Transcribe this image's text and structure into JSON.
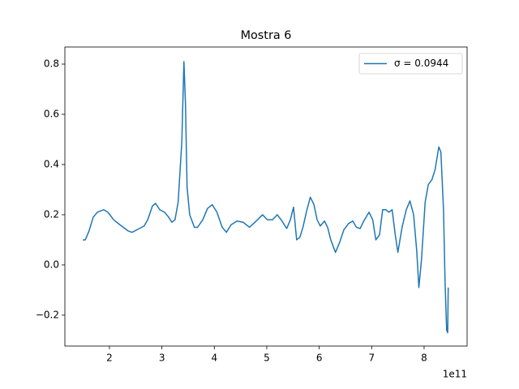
{
  "chart_data": {
    "type": "line",
    "title": "Mostra 6",
    "x_offset_label": "1e11",
    "x": [
      1.49,
      1.54,
      1.61,
      1.69,
      1.77,
      1.89,
      1.97,
      2.08,
      2.2,
      2.36,
      2.43,
      2.57,
      2.66,
      2.73,
      2.82,
      2.88,
      2.96,
      3.05,
      3.13,
      3.19,
      3.25,
      3.31,
      3.38,
      3.42,
      3.45,
      3.48,
      3.53,
      3.62,
      3.68,
      3.78,
      3.87,
      3.96,
      4.05,
      4.15,
      4.23,
      4.32,
      4.43,
      4.55,
      4.67,
      4.8,
      4.92,
      5.01,
      5.11,
      5.2,
      5.29,
      5.38,
      5.45,
      5.51,
      5.57,
      5.63,
      5.69,
      5.76,
      5.83,
      5.9,
      5.96,
      6.02,
      6.1,
      6.16,
      6.22,
      6.31,
      6.39,
      6.47,
      6.56,
      6.64,
      6.71,
      6.78,
      6.85,
      6.95,
      7.02,
      7.08,
      7.15,
      7.21,
      7.27,
      7.33,
      7.39,
      7.45,
      7.5,
      7.58,
      7.66,
      7.73,
      7.8,
      7.86,
      7.9,
      7.95,
      8.02,
      8.08,
      8.15,
      8.21,
      8.28,
      8.32,
      8.37,
      8.4,
      8.43,
      8.45,
      8.46
    ],
    "series": [
      {
        "name": "σ = 0.0944",
        "color": "#1f77b4",
        "values": [
          0.1,
          0.1,
          0.135,
          0.19,
          0.21,
          0.22,
          0.21,
          0.18,
          0.16,
          0.135,
          0.13,
          0.145,
          0.155,
          0.18,
          0.235,
          0.245,
          0.22,
          0.21,
          0.19,
          0.17,
          0.18,
          0.25,
          0.49,
          0.81,
          0.64,
          0.31,
          0.2,
          0.15,
          0.15,
          0.18,
          0.225,
          0.24,
          0.21,
          0.15,
          0.13,
          0.16,
          0.175,
          0.17,
          0.15,
          0.175,
          0.2,
          0.18,
          0.18,
          0.2,
          0.175,
          0.145,
          0.18,
          0.23,
          0.1,
          0.11,
          0.15,
          0.215,
          0.27,
          0.24,
          0.18,
          0.155,
          0.175,
          0.15,
          0.1,
          0.05,
          0.09,
          0.14,
          0.165,
          0.175,
          0.15,
          0.145,
          0.175,
          0.21,
          0.18,
          0.1,
          0.12,
          0.22,
          0.22,
          0.21,
          0.22,
          0.12,
          0.05,
          0.15,
          0.22,
          0.255,
          0.2,
          0.055,
          -0.09,
          0.02,
          0.25,
          0.32,
          0.34,
          0.38,
          0.47,
          0.45,
          0.22,
          -0.07,
          -0.26,
          -0.27,
          -0.09
        ]
      }
    ],
    "xlim": [
      1.15,
      8.82
    ],
    "xticks": [
      2,
      3,
      4,
      5,
      6,
      7,
      8
    ],
    "ylim": [
      -0.323,
      0.868
    ],
    "yticks": [
      {
        "value": -0.2,
        "label": "−0.2"
      },
      {
        "value": 0,
        "label": "0.0"
      },
      0.2,
      0.4,
      0.6,
      0.8
    ],
    "legend": "upper right"
  }
}
